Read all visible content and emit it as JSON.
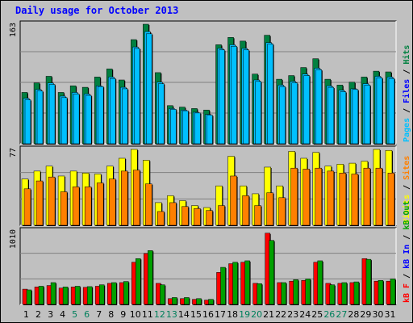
{
  "title": "Daily usage for October 2013",
  "colors": {
    "hits": "#008040",
    "files": "#00c0ff",
    "pages": "#00c0ff",
    "visits": "#ffff00",
    "sites": "#ff8000",
    "kb_f": "#ff0000",
    "kb_in": "#0000ff",
    "kb_out": "#00a000",
    "weekend_day": "#00805c",
    "weekday_day": "#000000"
  },
  "chart_data": [
    {
      "type": "bar",
      "name": "hits_files_pages",
      "ymax_label": "163",
      "legend": [
        {
          "text": "Pages",
          "color": "#00c0ff"
        },
        {
          "text": " / ",
          "color": "#000000"
        },
        {
          "text": "Files",
          "color": "#0000ff"
        },
        {
          "text": " / ",
          "color": "#000000"
        },
        {
          "text": "Hits",
          "color": "#008040"
        }
      ],
      "ylim": [
        0,
        163
      ],
      "categories": [
        "1",
        "2",
        "3",
        "4",
        "5",
        "6",
        "7",
        "8",
        "9",
        "10",
        "11",
        "12",
        "13",
        "14",
        "15",
        "16",
        "17",
        "18",
        "19",
        "20",
        "21",
        "22",
        "23",
        "24",
        "25",
        "26",
        "27",
        "28",
        "29",
        "30",
        "31"
      ],
      "series": [
        {
          "key": "hits",
          "values": [
            70,
            83,
            92,
            70,
            79,
            77,
            91,
            102,
            87,
            142,
            163,
            97,
            52,
            50,
            48,
            46,
            135,
            145,
            140,
            95,
            148,
            88,
            93,
            104,
            116,
            88,
            80,
            84,
            91,
            99,
            98
          ]
        },
        {
          "key": "files",
          "values": [
            62,
            74,
            83,
            65,
            70,
            68,
            79,
            91,
            77,
            132,
            153,
            84,
            48,
            46,
            43,
            40,
            130,
            135,
            130,
            87,
            138,
            80,
            85,
            95,
            103,
            79,
            73,
            75,
            82,
            92,
            91
          ]
        },
        {
          "key": "pages",
          "values": [
            60,
            72,
            81,
            63,
            68,
            66,
            78,
            89,
            75,
            130,
            150,
            82,
            47,
            45,
            42,
            39,
            128,
            133,
            128,
            85,
            136,
            78,
            83,
            93,
            101,
            77,
            71,
            74,
            80,
            90,
            89
          ]
        }
      ]
    },
    {
      "type": "bar",
      "name": "visits_sites",
      "ymax_label": "77",
      "legend": [
        {
          "text": "Visits",
          "color": "#ffff00"
        },
        {
          "text": " / ",
          "color": "#000000"
        },
        {
          "text": "Sites",
          "color": "#ff8000"
        }
      ],
      "ylim": [
        0,
        77
      ],
      "categories": [
        "1",
        "2",
        "3",
        "4",
        "5",
        "6",
        "7",
        "8",
        "9",
        "10",
        "11",
        "12",
        "13",
        "14",
        "15",
        "16",
        "17",
        "18",
        "19",
        "20",
        "21",
        "22",
        "23",
        "24",
        "25",
        "26",
        "27",
        "28",
        "29",
        "30",
        "31"
      ],
      "series": [
        {
          "key": "visits",
          "values": [
            47,
            55,
            60,
            50,
            55,
            53,
            52,
            60,
            68,
            77,
            66,
            23,
            30,
            25,
            20,
            18,
            40,
            70,
            40,
            32,
            59,
            40,
            75,
            68,
            74,
            60,
            62,
            63,
            65,
            77,
            76
          ]
        },
        {
          "key": "sites",
          "values": [
            37,
            45,
            49,
            34,
            39,
            39,
            43,
            47,
            55,
            56,
            42,
            14,
            23,
            19,
            17,
            15,
            20,
            50,
            30,
            20,
            33,
            28,
            58,
            57,
            58,
            55,
            53,
            52,
            58,
            58,
            53
          ]
        }
      ]
    },
    {
      "type": "bar",
      "name": "kbytes",
      "ymax_label": "1010",
      "legend": [
        {
          "text": "kB F",
          "color": "#ff0000"
        },
        {
          "text": " / ",
          "color": "#000000"
        },
        {
          "text": "kB In",
          "color": "#0000ff"
        },
        {
          "text": " / ",
          "color": "#000000"
        },
        {
          "text": "kB Out",
          "color": "#00a000"
        }
      ],
      "ylim": [
        0,
        1010
      ],
      "categories": [
        "1",
        "2",
        "3",
        "4",
        "5",
        "6",
        "7",
        "8",
        "9",
        "10",
        "11",
        "12",
        "13",
        "14",
        "15",
        "16",
        "17",
        "18",
        "19",
        "20",
        "21",
        "22",
        "23",
        "24",
        "25",
        "26",
        "27",
        "28",
        "29",
        "30",
        "31"
      ],
      "series": [
        {
          "key": "kb_f",
          "values": [
            210,
            240,
            260,
            225,
            240,
            235,
            250,
            290,
            300,
            580,
            700,
            290,
            80,
            80,
            70,
            60,
            440,
            560,
            580,
            290,
            980,
            300,
            320,
            330,
            580,
            290,
            290,
            300,
            630,
            320,
            320
          ]
        },
        {
          "key": "kb_out",
          "values": [
            200,
            250,
            300,
            240,
            250,
            245,
            270,
            300,
            315,
            630,
            740,
            270,
            95,
            95,
            80,
            70,
            510,
            580,
            600,
            285,
            880,
            300,
            340,
            350,
            600,
            270,
            300,
            310,
            620,
            330,
            350
          ]
        }
      ]
    }
  ]
}
